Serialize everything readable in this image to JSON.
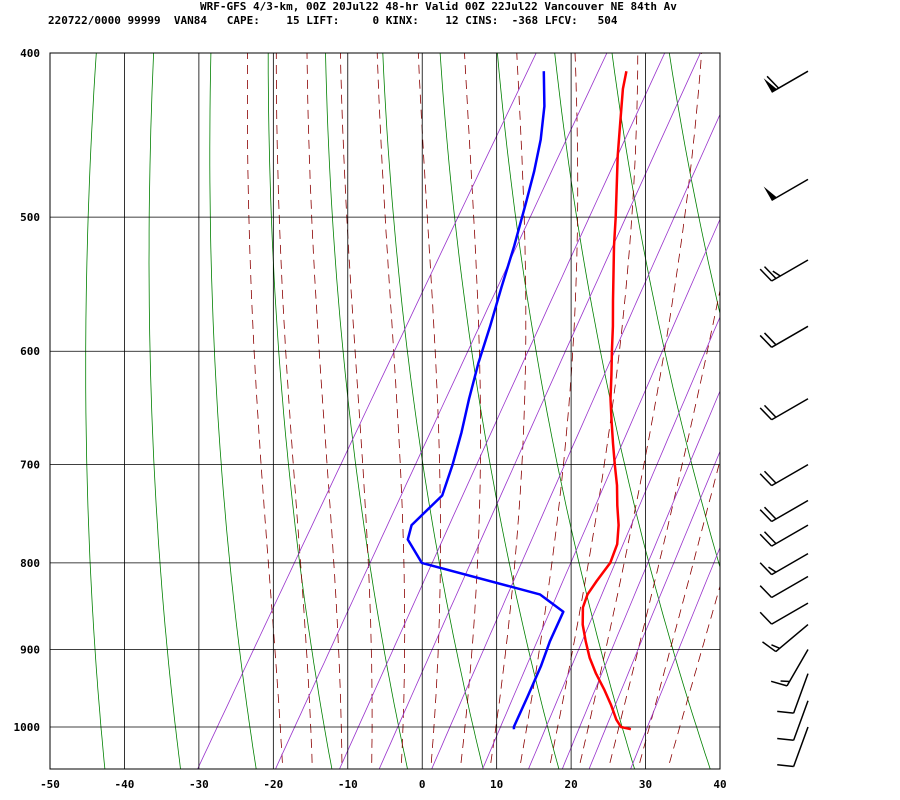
{
  "header": {
    "line1": "WRF-GFS 4/3-km, 00Z 20Jul22 48-hr Valid 00Z 22Jul22 Vancouver NE 84th Av",
    "line2": "220722/0000 99999  VAN84   CAPE:    15 LIFT:     0 KINX:    12 CINS:  -368 LFCV:   504"
  },
  "colors": {
    "temperature": "#ff0000",
    "dewpoint": "#0000ff",
    "dry_adiabat": "#008000",
    "moist_adiabat": "#8b0000",
    "mixing_ratio": "#9933cc",
    "grid": "#000000",
    "wind_barb": "#000000"
  },
  "chart_data": {
    "type": "line",
    "subtype": "skew-t log-p sounding",
    "x_axis": {
      "ticks": [
        -50,
        -40,
        -30,
        -20,
        -10,
        0,
        10,
        20,
        30,
        40
      ],
      "range": [
        -50,
        40
      ],
      "unit": ""
    },
    "y_axis": {
      "ticks": [
        400,
        500,
        600,
        700,
        800,
        900,
        1000
      ],
      "range": [
        400,
        1050
      ],
      "scale": "log"
    },
    "grid": true,
    "series": [
      {
        "key": "temperature",
        "color": "#ff0000",
        "points": [
          [
            1003,
            28.2
          ],
          [
            1000,
            26.7
          ],
          [
            990,
            25.5
          ],
          [
            970,
            23.6
          ],
          [
            950,
            21.5
          ],
          [
            930,
            19.2
          ],
          [
            910,
            17.1
          ],
          [
            890,
            15.3
          ],
          [
            870,
            13.6
          ],
          [
            850,
            12.3
          ],
          [
            835,
            11.9
          ],
          [
            820,
            12.1
          ],
          [
            800,
            12.5
          ],
          [
            780,
            12.0
          ],
          [
            760,
            10.7
          ],
          [
            740,
            9.0
          ],
          [
            720,
            7.4
          ],
          [
            700,
            5.5
          ],
          [
            680,
            3.6
          ],
          [
            660,
            1.7
          ],
          [
            640,
            -0.2
          ],
          [
            620,
            -1.9
          ],
          [
            600,
            -3.7
          ],
          [
            580,
            -5.5
          ],
          [
            560,
            -7.5
          ],
          [
            540,
            -9.5
          ],
          [
            520,
            -11.6
          ],
          [
            500,
            -13.6
          ],
          [
            480,
            -15.8
          ],
          [
            460,
            -18.1
          ],
          [
            440,
            -20.3
          ],
          [
            420,
            -22.6
          ],
          [
            410,
            -23.5
          ]
        ]
      },
      {
        "key": "dewpoint",
        "color": "#0000ff",
        "points": [
          [
            1003,
            12.5
          ],
          [
            1000,
            12.3
          ],
          [
            960,
            11.8
          ],
          [
            920,
            11.2
          ],
          [
            890,
            10.5
          ],
          [
            855,
            10.0
          ],
          [
            835,
            5.5
          ],
          [
            800,
            -12.8
          ],
          [
            775,
            -16.5
          ],
          [
            760,
            -17.1
          ],
          [
            730,
            -15.3
          ],
          [
            700,
            -16.3
          ],
          [
            670,
            -17.6
          ],
          [
            640,
            -19.2
          ],
          [
            610,
            -20.7
          ],
          [
            580,
            -22.0
          ],
          [
            550,
            -23.5
          ],
          [
            520,
            -25.0
          ],
          [
            490,
            -26.8
          ],
          [
            470,
            -28.1
          ],
          [
            450,
            -29.7
          ],
          [
            430,
            -31.8
          ],
          [
            410,
            -34.6
          ]
        ]
      }
    ],
    "wind_barbs": [
      {
        "p": 410,
        "dir": 240,
        "spd": 60
      },
      {
        "p": 475,
        "dir": 240,
        "spd": 50
      },
      {
        "p": 530,
        "dir": 240,
        "spd": 25
      },
      {
        "p": 580,
        "dir": 240,
        "spd": 20
      },
      {
        "p": 640,
        "dir": 240,
        "spd": 20
      },
      {
        "p": 700,
        "dir": 240,
        "spd": 20
      },
      {
        "p": 735,
        "dir": 240,
        "spd": 20
      },
      {
        "p": 760,
        "dir": 240,
        "spd": 20
      },
      {
        "p": 790,
        "dir": 240,
        "spd": 15
      },
      {
        "p": 815,
        "dir": 240,
        "spd": 10
      },
      {
        "p": 845,
        "dir": 240,
        "spd": 10
      },
      {
        "p": 870,
        "dir": 230,
        "spd": 15
      },
      {
        "p": 900,
        "dir": 210,
        "spd": 15
      },
      {
        "p": 930,
        "dir": 200,
        "spd": 10
      },
      {
        "p": 965,
        "dir": 200,
        "spd": 10
      },
      {
        "p": 1000,
        "dir": 200,
        "spd": 10
      }
    ]
  }
}
